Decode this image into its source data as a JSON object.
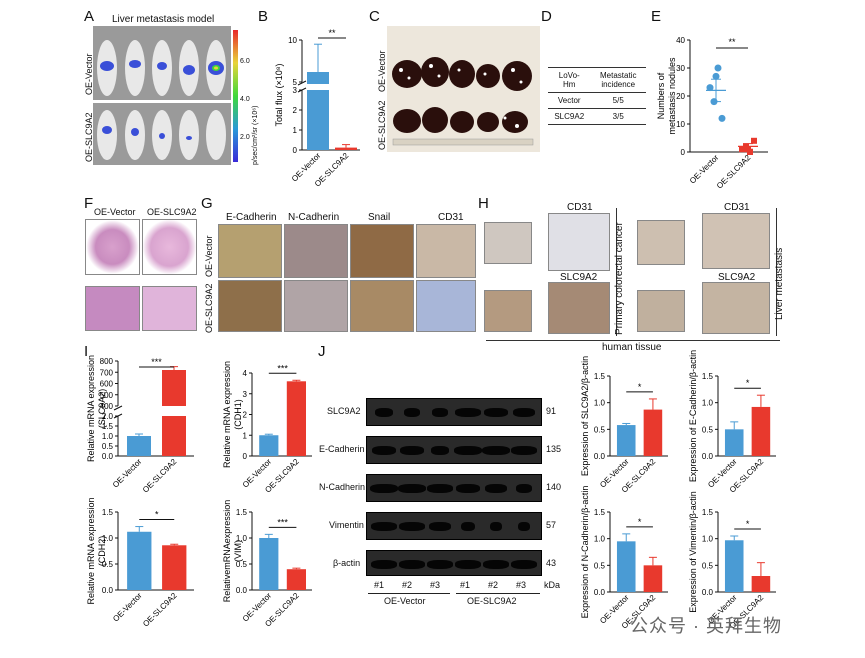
{
  "panels": {
    "A": "A",
    "B": "B",
    "C": "C",
    "D": "D",
    "E": "E",
    "F": "F",
    "G": "G",
    "H": "H",
    "I": "I",
    "J": "J"
  },
  "panelA": {
    "title": "Liver metastasis model",
    "row_labels": [
      "OE-Vector",
      "OE-SLC9A2"
    ],
    "colorbar_unit": "p/sec/cm²/sr (×10⁶)",
    "colorbar_ticks": [
      "6.0",
      "4.0",
      "2.0"
    ]
  },
  "panelC": {
    "row_labels": [
      "OE-Vector",
      "OE-SLC9A2"
    ]
  },
  "panelD": {
    "header": [
      "LoVo-Hm",
      "Metastatic incidence"
    ],
    "rows": [
      [
        "Vector",
        "5/5"
      ],
      [
        "SLC9A2",
        "3/5"
      ]
    ]
  },
  "panelF": {
    "col_labels": [
      "OE-Vector",
      "OE-SLC9A2"
    ]
  },
  "panelG": {
    "col_labels": [
      "E-Cadherin",
      "N-Cadherin",
      "Snail",
      "CD31"
    ],
    "row_labels": [
      "OE-Vector",
      "OE-SLC9A2"
    ]
  },
  "panelH": {
    "labels": [
      "CD31",
      "SLC9A2",
      "CD31",
      "SLC9A2"
    ],
    "side_labels": [
      "Primary colorectal cancer",
      "Liver metastasis"
    ],
    "caption": "human tissue"
  },
  "panelJ": {
    "proteins": [
      "SLC9A2",
      "E-Cadherin",
      "N-Cadherin",
      "Vimentin",
      "β-actin"
    ],
    "kda": [
      "91",
      "135",
      "140",
      "57",
      "43"
    ],
    "lanes": [
      "#1",
      "#2",
      "#3",
      "#1",
      "#2",
      "#3"
    ],
    "kda_label": "kDa",
    "groups": [
      "OE-Vector",
      "OE-SLC9A2"
    ]
  },
  "chart_data": [
    {
      "id": "B",
      "type": "bar",
      "categories": [
        "OE-Vector",
        "OE-SLC9A2"
      ],
      "values": [
        4.3,
        0.12
      ],
      "errors": [
        5.2,
        0.15
      ],
      "ylabel": "Total flux (×10⁸)",
      "yticks": [
        "0",
        "1",
        "2",
        "3",
        "5",
        "10"
      ],
      "sig": "**"
    },
    {
      "id": "E",
      "type": "scatter",
      "categories": [
        "OE-Vector",
        "OE-SLC9A2"
      ],
      "values": [
        [
          23,
          18,
          30,
          12,
          27
        ],
        [
          1,
          2,
          0,
          4,
          1
        ]
      ],
      "means": [
        22,
        2
      ],
      "sem": [
        4,
        1
      ],
      "ylabel": "Numbers of metastasis nodules",
      "ylim": [
        0,
        40
      ],
      "yticks": [
        "0",
        "10",
        "20",
        "30",
        "40"
      ],
      "sig": "**"
    },
    {
      "id": "I1",
      "type": "bar",
      "categories": [
        "OE-Vector",
        "OE-SLC9A2"
      ],
      "values": [
        1.0,
        720
      ],
      "errors": [
        0.1,
        30
      ],
      "ylabel": "Relative mRNA expression (SLC9A2)",
      "yticks": [
        "0.0",
        "0.5",
        "1.0",
        "1.5",
        "2.0",
        "400",
        "500",
        "600",
        "700",
        "800"
      ],
      "sig": "***"
    },
    {
      "id": "I2",
      "type": "bar",
      "categories": [
        "OE-Vector",
        "OE-SLC9A2"
      ],
      "values": [
        1.0,
        3.6
      ],
      "errors": [
        0.05,
        0.05
      ],
      "ylabel": "Relative mRNA expression (CDH1)",
      "ylim": [
        0,
        4
      ],
      "yticks": [
        "0",
        "1",
        "2",
        "3",
        "4"
      ],
      "sig": "***"
    },
    {
      "id": "I3",
      "type": "bar",
      "categories": [
        "OE-Vector",
        "OE-SLC9A2"
      ],
      "values": [
        1.12,
        0.86
      ],
      "errors": [
        0.1,
        0.02
      ],
      "ylabel": "Relative mRNA expression (CDH2)",
      "ylim": [
        0,
        1.5
      ],
      "yticks": [
        "0.0",
        "0.5",
        "1.0",
        "1.5"
      ],
      "sig": "*"
    },
    {
      "id": "I4",
      "type": "bar",
      "categories": [
        "OE-Vector",
        "OE-SLC9A2"
      ],
      "values": [
        1.0,
        0.4
      ],
      "errors": [
        0.07,
        0.02
      ],
      "ylabel": "RelativemRNAexpression (VIM)",
      "ylim": [
        0,
        1.5
      ],
      "yticks": [
        "0.0",
        "0.5",
        "1.0",
        "1.5"
      ],
      "sig": "***"
    },
    {
      "id": "J1",
      "type": "bar",
      "categories": [
        "OE-Vector",
        "OE-SLC9A2"
      ],
      "values": [
        0.58,
        0.87
      ],
      "errors": [
        0.03,
        0.2
      ],
      "ylabel": "Expression of SLC9A2/β-actin",
      "ylim": [
        0,
        1.5
      ],
      "yticks": [
        "0.0",
        "0.5",
        "1.0",
        "1.5"
      ],
      "sig": "*"
    },
    {
      "id": "J2",
      "type": "bar",
      "categories": [
        "OE-Vector",
        "OE-SLC9A2"
      ],
      "values": [
        0.5,
        0.92
      ],
      "errors": [
        0.14,
        0.22
      ],
      "ylabel": "Expression of E-Cadherin/β-actin",
      "ylim": [
        0,
        1.5
      ],
      "yticks": [
        "0.0",
        "0.5",
        "1.0",
        "1.5"
      ],
      "sig": "*"
    },
    {
      "id": "J3",
      "type": "bar",
      "categories": [
        "OE-Vector",
        "OE-SLC9A2"
      ],
      "values": [
        0.95,
        0.5
      ],
      "errors": [
        0.14,
        0.15
      ],
      "ylabel": "Expression of N-Cadherin/β-actin",
      "ylim": [
        0,
        1.5
      ],
      "yticks": [
        "0.0",
        "0.5",
        "1.0",
        "1.5"
      ],
      "sig": "*"
    },
    {
      "id": "J4",
      "type": "bar",
      "categories": [
        "OE-Vector",
        "OE-SLC9A2"
      ],
      "values": [
        0.97,
        0.3
      ],
      "errors": [
        0.08,
        0.25
      ],
      "ylabel": "Expression of Vimentin/β-actin",
      "ylim": [
        0,
        1.5
      ],
      "yticks": [
        "0.0",
        "0.5",
        "1.0",
        "1.5"
      ],
      "sig": "*"
    }
  ],
  "colors": {
    "vector": "#4a9bd4",
    "slc9a2": "#e8392d"
  },
  "watermark": "公众号 · 英拜生物"
}
